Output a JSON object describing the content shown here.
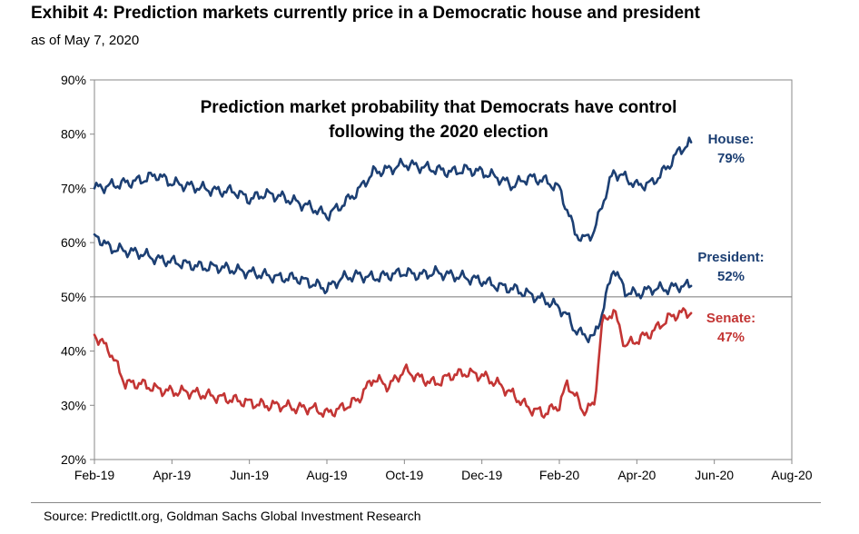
{
  "exhibit": {
    "title": "Exhibit 4: Prediction markets currently price in a Democratic house and president",
    "subtitle": "as of May 7, 2020",
    "source": "Source: PredictIt.org, Goldman Sachs Global Investment Research"
  },
  "chart_data": {
    "type": "line",
    "title_lines": [
      "Prediction market probability that Democrats have control",
      "following the 2020 election"
    ],
    "xlabel": "",
    "ylabel": "",
    "ylim": [
      20,
      90
    ],
    "y_ticks": [
      "20%",
      "30%",
      "40%",
      "50%",
      "60%",
      "70%",
      "80%",
      "90%"
    ],
    "x_ticks": [
      "Feb-19",
      "Apr-19",
      "Jun-19",
      "Aug-19",
      "Oct-19",
      "Dec-19",
      "Feb-20",
      "Apr-20",
      "Jun-20",
      "Aug-20"
    ],
    "x_domain": [
      0,
      9
    ],
    "reference_line_y": 50,
    "grid": false,
    "legend": "inline labels at right end of each series",
    "colors": {
      "navy": "#1c3f73",
      "red": "#c33534",
      "axis": "#888888"
    },
    "series": [
      {
        "name": "House",
        "label": "House:",
        "value_label": "79%",
        "color": "#1c3f73",
        "x": [
          0,
          0.2,
          0.4,
          0.6,
          0.8,
          1.0,
          1.2,
          1.4,
          1.6,
          1.8,
          2.0,
          2.2,
          2.4,
          2.6,
          2.8,
          3.0,
          3.2,
          3.4,
          3.6,
          3.8,
          4.0,
          4.2,
          4.4,
          4.6,
          4.8,
          5.0,
          5.2,
          5.4,
          5.6,
          5.8,
          6.0,
          6.1,
          6.2,
          6.3,
          6.45,
          6.55,
          6.7,
          6.85,
          7.0,
          7.2,
          7.4,
          7.55,
          7.7
        ],
        "values": [
          70,
          70.5,
          71,
          71.5,
          72.5,
          71,
          70.5,
          70,
          69.5,
          69.5,
          68,
          69,
          68.5,
          67.5,
          66.5,
          65,
          67,
          69.5,
          73,
          73.5,
          74.5,
          74,
          73.5,
          73,
          73.5,
          73,
          72,
          70.5,
          72,
          71.5,
          70,
          66,
          62,
          60.5,
          62,
          67,
          73,
          72,
          70.5,
          71,
          74,
          77,
          78.5
        ]
      },
      {
        "name": "President",
        "label": "President:",
        "value_label": "52%",
        "color": "#1c3f73",
        "x": [
          0,
          0.2,
          0.4,
          0.6,
          0.8,
          1.0,
          1.2,
          1.4,
          1.6,
          1.8,
          2.0,
          2.2,
          2.4,
          2.6,
          2.8,
          3.0,
          3.2,
          3.4,
          3.6,
          3.8,
          4.0,
          4.2,
          4.4,
          4.6,
          4.8,
          5.0,
          5.2,
          5.4,
          5.6,
          5.8,
          6.0,
          6.1,
          6.2,
          6.3,
          6.45,
          6.55,
          6.7,
          6.85,
          7.0,
          7.2,
          7.4,
          7.55,
          7.7
        ],
        "values": [
          61.5,
          59,
          58.5,
          58,
          57,
          56.5,
          56,
          55.5,
          55.5,
          55,
          54.5,
          54,
          53.5,
          53.5,
          52.5,
          51.5,
          53.5,
          54,
          53.5,
          54,
          54.5,
          54,
          54.5,
          54,
          53.5,
          53,
          52,
          51.5,
          50.5,
          49.5,
          48,
          46.5,
          44,
          43,
          42.5,
          47,
          55.5,
          51,
          50.5,
          51.5,
          51.5,
          52,
          52
        ]
      },
      {
        "name": "Senate",
        "label": "Senate:",
        "value_label": "47%",
        "color": "#c33534",
        "x": [
          0,
          0.2,
          0.4,
          0.6,
          0.8,
          1.0,
          1.2,
          1.4,
          1.6,
          1.8,
          2.0,
          2.2,
          2.4,
          2.6,
          2.8,
          3.0,
          3.2,
          3.4,
          3.6,
          3.8,
          4.0,
          4.2,
          4.4,
          4.6,
          4.8,
          5.0,
          5.2,
          5.4,
          5.6,
          5.8,
          6.0,
          6.1,
          6.2,
          6.3,
          6.45,
          6.55,
          6.7,
          6.85,
          7.0,
          7.2,
          7.4,
          7.55,
          7.7
        ],
        "values": [
          43,
          40,
          34,
          34,
          33,
          32.5,
          32.5,
          32,
          31.5,
          31,
          30.5,
          30,
          30,
          29.5,
          29.5,
          28.5,
          29.5,
          31,
          35,
          33.5,
          36.5,
          35,
          34,
          35.5,
          36,
          35.5,
          34,
          32,
          29.5,
          28.5,
          30,
          34,
          32,
          29,
          30,
          45,
          47.5,
          41,
          42,
          43.5,
          46,
          47,
          47
        ]
      }
    ]
  }
}
